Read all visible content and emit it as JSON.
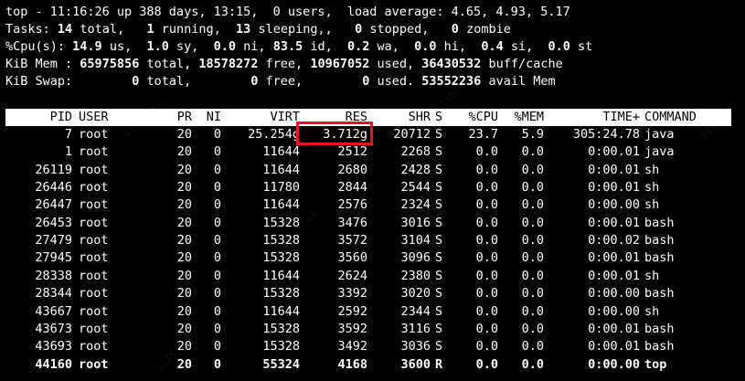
{
  "summary": {
    "line1": "top - 11:16:26 up 388 days, 13:15,  0 users,  load average: 4.65, 4.93, 5.17",
    "tasks": {
      "label": "Tasks:",
      "total": "14",
      "total_label": " total,",
      "running": "1",
      "running_label": " running,",
      "sleeping": "13",
      "sleeping_label": " sleeping,",
      "stopped": "0",
      "stopped_label": " stopped,",
      "zombie": "0",
      "zombie_label": " zombie"
    },
    "cpu": {
      "label": "%Cpu(s):",
      "us": "14.9",
      "us_label": " us,",
      "sy": "1.0",
      "sy_label": " sy,",
      "ni": "0.0",
      "ni_label": " ni,",
      "id": "83.5",
      "id_label": " id,",
      "wa": "0.2",
      "wa_label": " wa,",
      "hi": "0.0",
      "hi_label": " hi,",
      "si": "0.4",
      "si_label": " si,",
      "st": "0.0",
      "st_label": " st"
    },
    "mem": {
      "label": "KiB Mem :",
      "total": "65975856",
      "total_label": " total,",
      "free": "18578272",
      "free_label": " free,",
      "used": "10967052",
      "used_label": " used,",
      "buff": "36430532",
      "buff_label": " buff/cache"
    },
    "swap": {
      "label": "KiB Swap:",
      "total": "0",
      "total_label": " total,",
      "free": "0",
      "free_label": " free,",
      "used": "0",
      "used_label": " used.",
      "avail": "53552236",
      "avail_label": " avail Mem"
    }
  },
  "columns": [
    "PID",
    "USER",
    "PR",
    "NI",
    "VIRT",
    "RES",
    "SHR",
    "S",
    "%CPU",
    "%MEM",
    "TIME+",
    "COMMAND"
  ],
  "processes": [
    {
      "pid": "7",
      "user": "root",
      "pr": "20",
      "ni": "0",
      "virt": "25.254g",
      "res": "3.712g",
      "shr": "20712",
      "s": "S",
      "cpu": "23.7",
      "mem": "5.9",
      "time": "305:24.78",
      "cmd": "java"
    },
    {
      "pid": "1",
      "user": "root",
      "pr": "20",
      "ni": "0",
      "virt": "11644",
      "res": "2512",
      "shr": "2268",
      "s": "S",
      "cpu": "0.0",
      "mem": "0.0",
      "time": "0:00.01",
      "cmd": "java"
    },
    {
      "pid": "26119",
      "user": "root",
      "pr": "20",
      "ni": "0",
      "virt": "11644",
      "res": "2680",
      "shr": "2428",
      "s": "S",
      "cpu": "0.0",
      "mem": "0.0",
      "time": "0:00.01",
      "cmd": "sh"
    },
    {
      "pid": "26446",
      "user": "root",
      "pr": "20",
      "ni": "0",
      "virt": "11780",
      "res": "2844",
      "shr": "2544",
      "s": "S",
      "cpu": "0.0",
      "mem": "0.0",
      "time": "0:00.01",
      "cmd": "sh"
    },
    {
      "pid": "26447",
      "user": "root",
      "pr": "20",
      "ni": "0",
      "virt": "11644",
      "res": "2576",
      "shr": "2324",
      "s": "S",
      "cpu": "0.0",
      "mem": "0.0",
      "time": "0:00.00",
      "cmd": "sh"
    },
    {
      "pid": "26453",
      "user": "root",
      "pr": "20",
      "ni": "0",
      "virt": "15328",
      "res": "3476",
      "shr": "3016",
      "s": "S",
      "cpu": "0.0",
      "mem": "0.0",
      "time": "0:00.01",
      "cmd": "bash"
    },
    {
      "pid": "27479",
      "user": "root",
      "pr": "20",
      "ni": "0",
      "virt": "15328",
      "res": "3572",
      "shr": "3104",
      "s": "S",
      "cpu": "0.0",
      "mem": "0.0",
      "time": "0:00.02",
      "cmd": "bash"
    },
    {
      "pid": "27945",
      "user": "root",
      "pr": "20",
      "ni": "0",
      "virt": "15328",
      "res": "3560",
      "shr": "3096",
      "s": "S",
      "cpu": "0.0",
      "mem": "0.0",
      "time": "0:00.01",
      "cmd": "bash"
    },
    {
      "pid": "28338",
      "user": "root",
      "pr": "20",
      "ni": "0",
      "virt": "11644",
      "res": "2624",
      "shr": "2380",
      "s": "S",
      "cpu": "0.0",
      "mem": "0.0",
      "time": "0:00.01",
      "cmd": "sh"
    },
    {
      "pid": "28344",
      "user": "root",
      "pr": "20",
      "ni": "0",
      "virt": "15328",
      "res": "3392",
      "shr": "3020",
      "s": "S",
      "cpu": "0.0",
      "mem": "0.0",
      "time": "0:00.00",
      "cmd": "bash"
    },
    {
      "pid": "43667",
      "user": "root",
      "pr": "20",
      "ni": "0",
      "virt": "11644",
      "res": "2592",
      "shr": "2344",
      "s": "S",
      "cpu": "0.0",
      "mem": "0.0",
      "time": "0:00.00",
      "cmd": "sh"
    },
    {
      "pid": "43673",
      "user": "root",
      "pr": "20",
      "ni": "0",
      "virt": "15328",
      "res": "3592",
      "shr": "3116",
      "s": "S",
      "cpu": "0.0",
      "mem": "0.0",
      "time": "0:00.01",
      "cmd": "bash"
    },
    {
      "pid": "43693",
      "user": "root",
      "pr": "20",
      "ni": "0",
      "virt": "15328",
      "res": "3492",
      "shr": "3036",
      "s": "S",
      "cpu": "0.0",
      "mem": "0.0",
      "time": "0:00.01",
      "cmd": "bash"
    },
    {
      "pid": "44160",
      "user": "root",
      "pr": "20",
      "ni": "0",
      "virt": "55324",
      "res": "4168",
      "shr": "3600",
      "s": "R",
      "cpu": "0.0",
      "mem": "0.0",
      "time": "0:00.00",
      "cmd": "top"
    }
  ],
  "highlight_row": 13,
  "annotation": {
    "target": "res-value-row-0",
    "color": "#e8141c"
  },
  "colors": {
    "background": "#000000",
    "text": "#ffffff",
    "header_bar": "#ffffff",
    "header_text": "#000000",
    "annotation": "#e8141c"
  }
}
